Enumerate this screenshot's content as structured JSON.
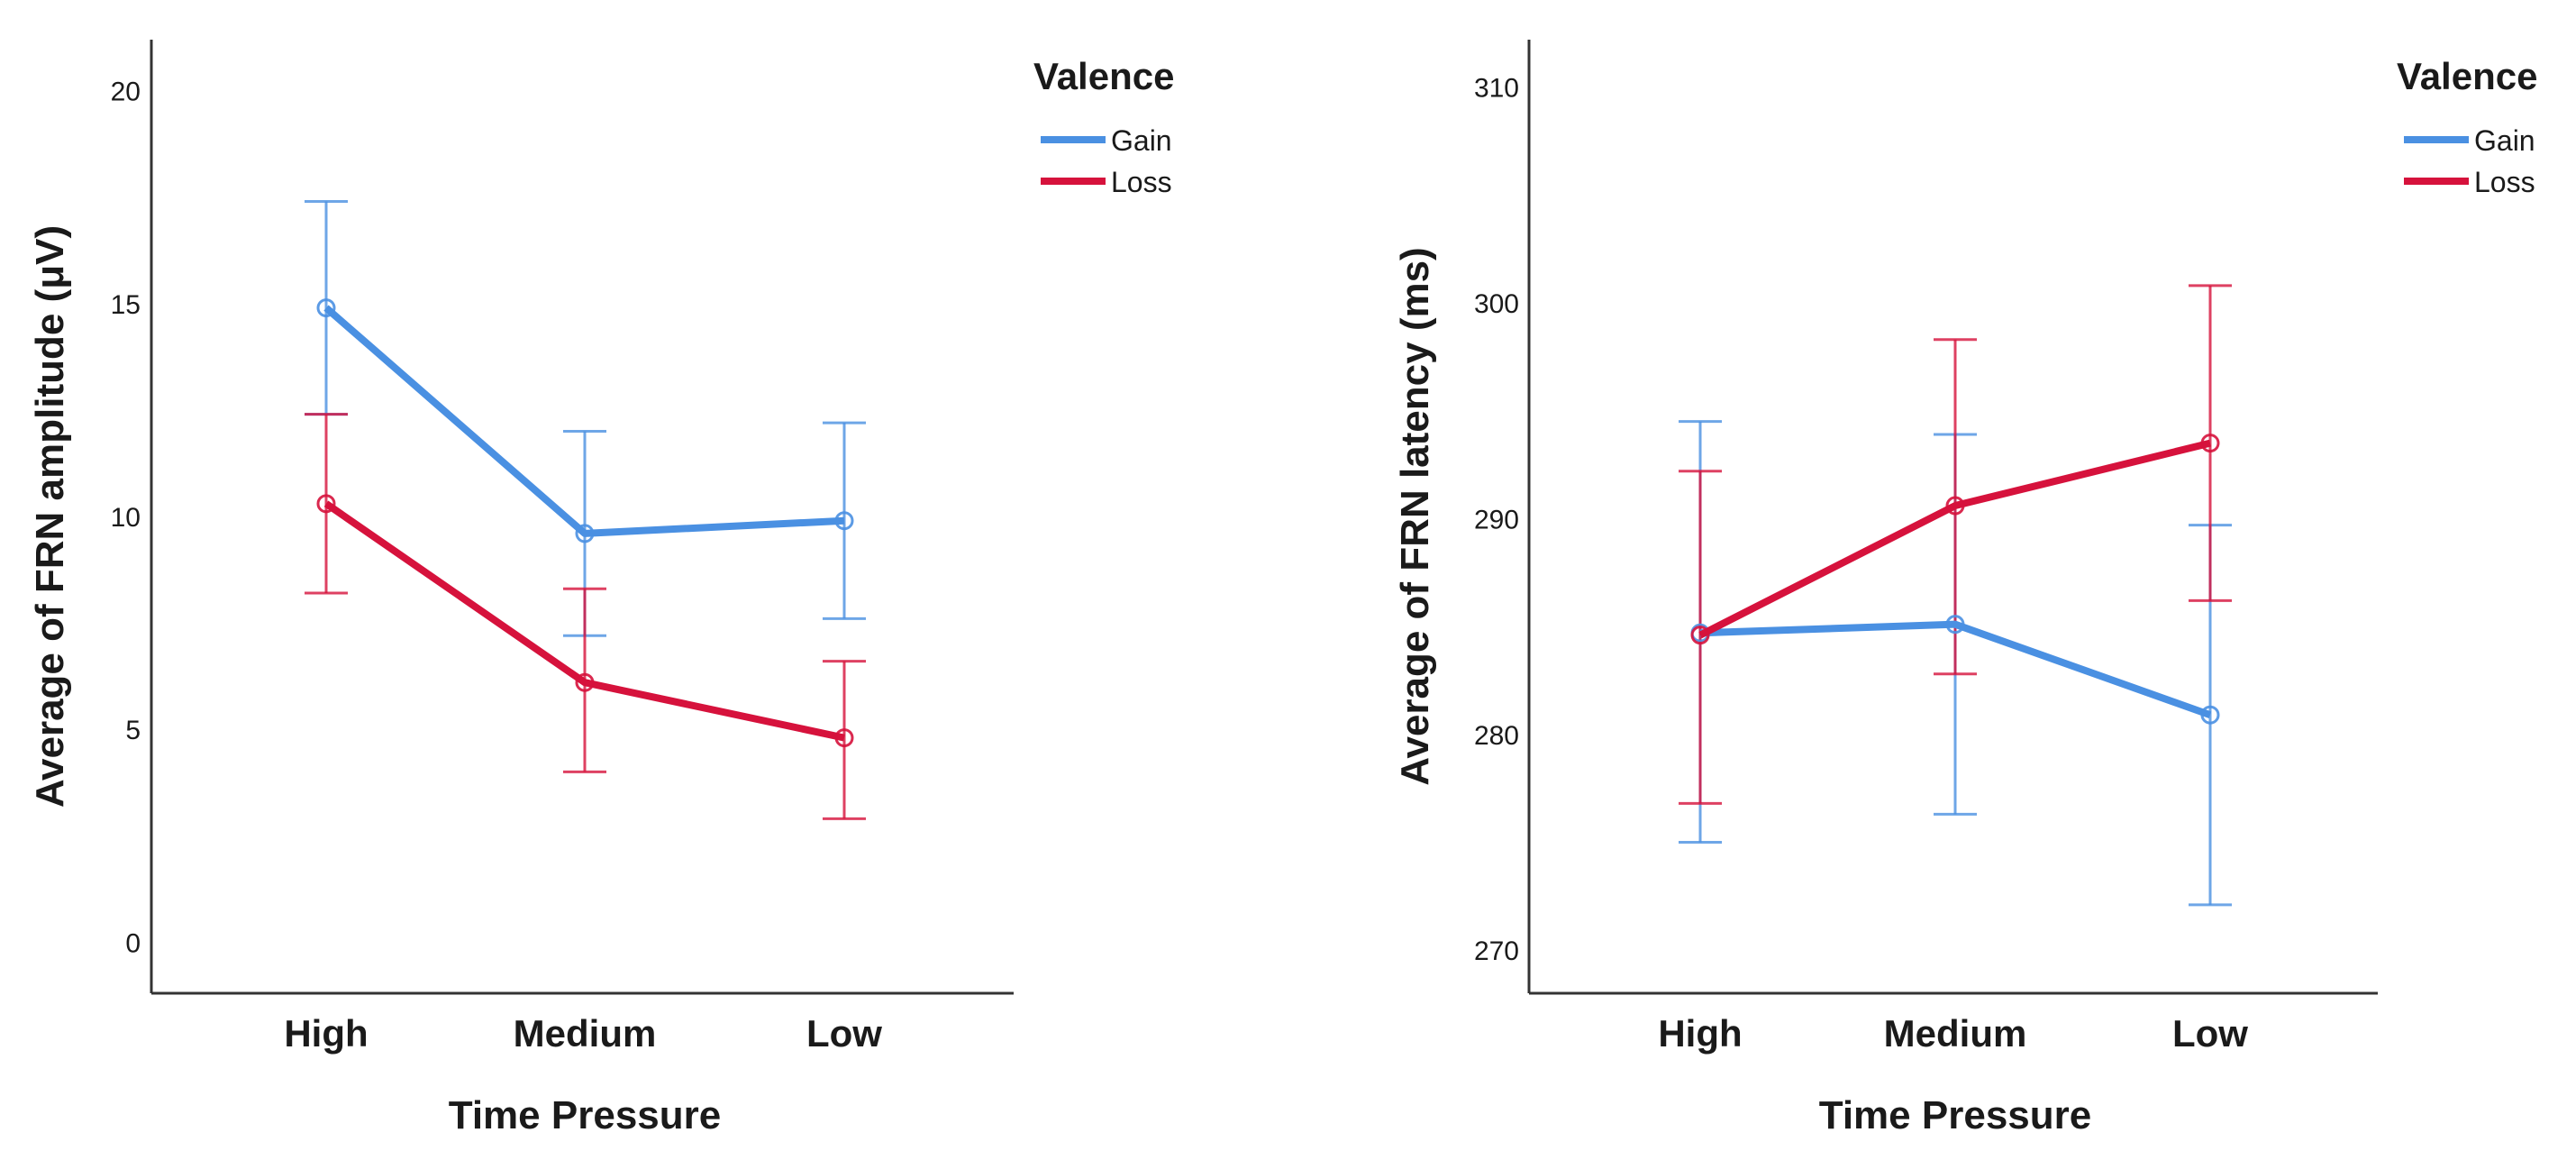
{
  "chart_data": [
    {
      "type": "line",
      "categories": [
        "High",
        "Medium",
        "Low"
      ],
      "xlabel": "Time Pressure",
      "ylabel": "Average of FRN amplitude (μV)",
      "ylim": [
        -1.2,
        21.2
      ],
      "yticks": [
        "0",
        "5",
        "10",
        "15",
        "20"
      ],
      "ytick_values": [
        0,
        5,
        10,
        15,
        20
      ],
      "legend": {
        "title": "Valence",
        "position": "top-right"
      },
      "series": [
        {
          "name": "Gain",
          "color": "#4a90e2",
          "values": [
            14.9,
            9.6,
            9.9
          ],
          "err_low": [
            12.4,
            7.2,
            7.6
          ],
          "err_high": [
            17.4,
            12.0,
            12.2
          ]
        },
        {
          "name": "Loss",
          "color": "#d6123c",
          "values": [
            10.3,
            6.1,
            4.8
          ],
          "err_low": [
            8.2,
            4.0,
            2.9
          ],
          "err_high": [
            12.4,
            8.3,
            6.6
          ]
        }
      ]
    },
    {
      "type": "line",
      "categories": [
        "High",
        "Medium",
        "Low"
      ],
      "xlabel": "Time Pressure",
      "ylabel": "Average of FRN latency (ms)",
      "ylim": [
        268,
        312.2
      ],
      "yticks": [
        "270",
        "280",
        "290",
        "300",
        "310"
      ],
      "ytick_values": [
        270,
        280,
        290,
        300,
        310
      ],
      "legend": {
        "title": "Valence",
        "position": "top-right"
      },
      "series": [
        {
          "name": "Gain",
          "color": "#4a90e2",
          "values": [
            284.7,
            285.1,
            280.9
          ],
          "err_low": [
            275.0,
            276.3,
            272.1
          ],
          "err_high": [
            294.5,
            293.9,
            289.7
          ]
        },
        {
          "name": "Loss",
          "color": "#d6123c",
          "values": [
            284.6,
            290.6,
            293.5
          ],
          "err_low": [
            276.8,
            282.8,
            286.2
          ],
          "err_high": [
            292.2,
            298.3,
            300.8
          ]
        }
      ]
    }
  ]
}
